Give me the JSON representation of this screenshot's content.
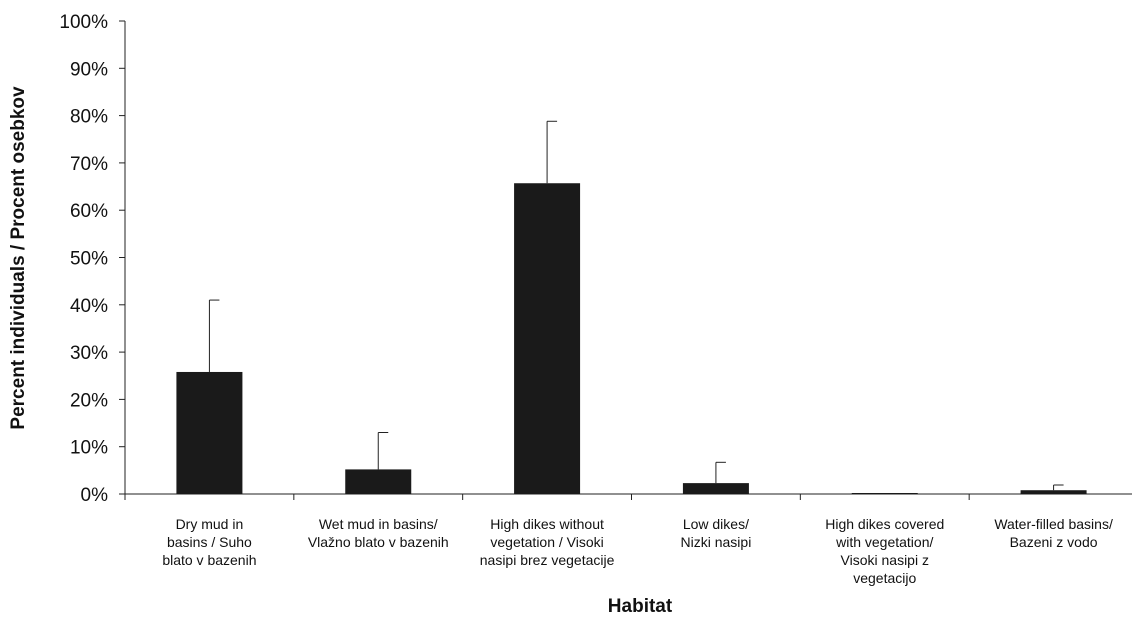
{
  "chart_data": {
    "type": "bar",
    "title": "",
    "xlabel": "Habitat",
    "ylabel": "Percent individuals / Procent osebkov",
    "ylim": [
      0,
      100
    ],
    "yticks": [
      "0%",
      "10%",
      "20%",
      "30%",
      "40%",
      "50%",
      "60%",
      "70%",
      "80%",
      "90%",
      "100%"
    ],
    "grid": false,
    "legend": "none",
    "categories": [
      [
        "Dry mud in",
        "basins / Suho",
        "blato v bazenih"
      ],
      [
        "Wet mud in basins/",
        "Vlažno blato v bazenih"
      ],
      [
        "High dikes without",
        "vegetation / Visoki",
        "nasipi brez vegetacije"
      ],
      [
        "Low dikes/",
        "Nizki nasipi"
      ],
      [
        "High dikes covered",
        "with vegetation/",
        "Visoki nasipi z",
        "vegetacijo"
      ],
      [
        "Water-filled basins/",
        "Bazeni z vodo"
      ]
    ],
    "values": [
      25.8,
      5.2,
      65.7,
      2.3,
      0.0,
      0.8
    ],
    "error_upper": [
      41.0,
      13.0,
      78.8,
      6.7,
      0.0,
      1.9
    ],
    "bar_color": "#1a1a1a"
  }
}
